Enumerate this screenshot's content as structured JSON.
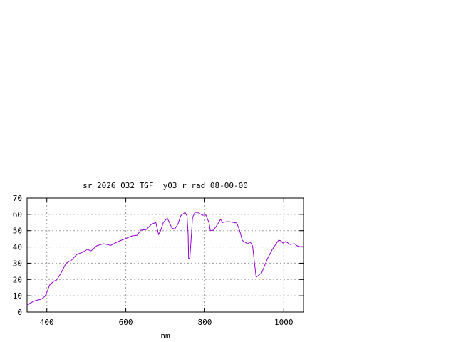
{
  "chart_data": {
    "type": "line",
    "title": "sr_2026_032_TGF__y03_r_rad 08-00-00",
    "xlabel": "nm",
    "ylabel": "",
    "xlim": [
      350,
      1050
    ],
    "ylim": [
      0,
      70
    ],
    "xticks": [
      400,
      600,
      800,
      1000
    ],
    "yticks": [
      0,
      10,
      20,
      30,
      40,
      50,
      60,
      70
    ],
    "grid": true,
    "legend": "none",
    "series": [
      {
        "color": "#9400d3",
        "x": [
          350,
          359,
          371,
          386,
          395,
          400,
          407,
          418,
          425,
          436,
          449,
          463,
          476,
          490,
          503,
          512,
          526,
          544,
          562,
          580,
          598,
          616,
          629,
          638,
          652,
          665,
          676,
          683,
          688,
          695,
          705,
          717,
          724,
          732,
          739,
          750,
          755,
          758,
          759,
          762,
          766,
          769,
          775,
          782,
          794,
          803,
          811,
          814,
          822,
          832,
          840,
          845,
          854,
          863,
          881,
          888,
          895,
          908,
          915,
          921,
          926,
          930,
          944,
          959,
          971,
          987,
          993,
          998,
          1005,
          1016,
          1027,
          1034,
          1040,
          1050
        ],
        "y": [
          4.4,
          5.7,
          7,
          7.9,
          9.6,
          12,
          16.6,
          19,
          19.7,
          24,
          30,
          32,
          35.4,
          36.7,
          38.5,
          37.6,
          40.7,
          42,
          41,
          43.3,
          45,
          46.8,
          47.2,
          50.3,
          50.7,
          54,
          55,
          47.7,
          49.9,
          55,
          57.7,
          51.6,
          51,
          54,
          59,
          61.2,
          59,
          47,
          33,
          33,
          47,
          58,
          61.2,
          61.2,
          59.5,
          59.5,
          54.7,
          50,
          50.3,
          53.8,
          57,
          55,
          55.5,
          55.5,
          54.7,
          50.3,
          44,
          42,
          43,
          40.7,
          29.7,
          21.4,
          24,
          33,
          38.5,
          44.2,
          43.7,
          42.4,
          43.3,
          41.5,
          42,
          40.7,
          40.2,
          40.2
        ]
      }
    ]
  }
}
